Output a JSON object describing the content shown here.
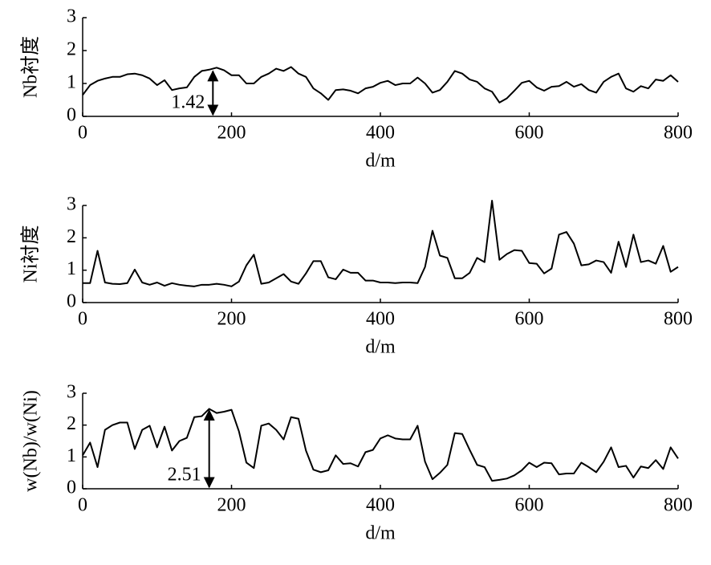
{
  "chart_data": [
    {
      "type": "line",
      "ylabel": "Nb衬度",
      "xlabel": "d/m",
      "color": "#000000",
      "x": [
        0,
        10,
        20,
        30,
        40,
        50,
        60,
        70,
        80,
        90,
        100,
        110,
        120,
        130,
        140,
        150,
        160,
        170,
        180,
        190,
        200,
        210,
        220,
        230,
        240,
        250,
        260,
        270,
        280,
        290,
        300,
        310,
        320,
        330,
        340,
        350,
        360,
        370,
        380,
        390,
        400,
        410,
        420,
        430,
        440,
        450,
        460,
        470,
        480,
        490,
        500,
        510,
        520,
        530,
        540,
        550,
        560,
        570,
        580,
        590,
        600,
        610,
        620,
        630,
        640,
        650,
        660,
        670,
        680,
        690,
        700,
        710,
        720,
        730,
        740,
        750,
        760,
        770,
        780,
        790,
        800
      ],
      "values": [
        0.65,
        0.95,
        1.08,
        1.15,
        1.2,
        1.2,
        1.28,
        1.3,
        1.25,
        1.15,
        0.95,
        1.1,
        0.8,
        0.85,
        0.88,
        1.2,
        1.38,
        1.42,
        1.48,
        1.4,
        1.25,
        1.25,
        1.0,
        1.0,
        1.2,
        1.3,
        1.45,
        1.38,
        1.5,
        1.3,
        1.2,
        0.85,
        0.7,
        0.5,
        0.8,
        0.82,
        0.78,
        0.7,
        0.85,
        0.9,
        1.02,
        1.08,
        0.95,
        1.0,
        1.0,
        1.18,
        1.0,
        0.72,
        0.8,
        1.05,
        1.38,
        1.3,
        1.12,
        1.05,
        0.85,
        0.75,
        0.42,
        0.55,
        0.78,
        1.02,
        1.08,
        0.88,
        0.78,
        0.9,
        0.92,
        1.05,
        0.9,
        0.98,
        0.8,
        0.72,
        1.05,
        1.2,
        1.3,
        0.85,
        0.75,
        0.92,
        0.85,
        1.12,
        1.08,
        1.25,
        1.05
      ],
      "xlim": [
        0,
        800
      ],
      "xticks": [
        0,
        200,
        400,
        600,
        800
      ],
      "ylim": [
        0,
        3
      ],
      "yticks": [
        0,
        1,
        2,
        3
      ],
      "annotation": {
        "label": "1.42",
        "x": 175,
        "y": 1.42
      }
    },
    {
      "type": "line",
      "ylabel": "Ni衬度",
      "xlabel": "d/m",
      "color": "#000000",
      "x": [
        0,
        10,
        20,
        30,
        40,
        50,
        60,
        70,
        80,
        90,
        100,
        110,
        120,
        130,
        140,
        150,
        160,
        170,
        180,
        190,
        200,
        210,
        220,
        230,
        240,
        250,
        260,
        270,
        280,
        290,
        300,
        310,
        320,
        330,
        340,
        350,
        360,
        370,
        380,
        390,
        400,
        410,
        420,
        430,
        440,
        450,
        460,
        470,
        480,
        490,
        500,
        510,
        520,
        530,
        540,
        550,
        560,
        570,
        580,
        590,
        600,
        610,
        620,
        630,
        640,
        650,
        660,
        670,
        680,
        690,
        700,
        710,
        720,
        730,
        740,
        750,
        760,
        770,
        780,
        790,
        800
      ],
      "values": [
        0.6,
        0.6,
        1.6,
        0.62,
        0.58,
        0.57,
        0.6,
        1.02,
        0.62,
        0.55,
        0.62,
        0.52,
        0.6,
        0.55,
        0.52,
        0.5,
        0.55,
        0.55,
        0.58,
        0.55,
        0.5,
        0.65,
        1.15,
        1.48,
        0.58,
        0.62,
        0.75,
        0.88,
        0.65,
        0.58,
        0.9,
        1.28,
        1.28,
        0.78,
        0.72,
        1.02,
        0.92,
        0.92,
        0.68,
        0.68,
        0.62,
        0.62,
        0.6,
        0.62,
        0.62,
        0.6,
        1.1,
        2.22,
        1.45,
        1.38,
        0.75,
        0.75,
        0.92,
        1.38,
        1.25,
        3.15,
        1.32,
        1.5,
        1.62,
        1.6,
        1.22,
        1.2,
        0.9,
        1.05,
        2.1,
        2.18,
        1.82,
        1.15,
        1.18,
        1.3,
        1.25,
        0.92,
        1.88,
        1.1,
        2.1,
        1.25,
        1.3,
        1.2,
        1.75,
        0.95,
        1.1
      ],
      "xlim": [
        0,
        800
      ],
      "xticks": [
        0,
        200,
        400,
        600,
        800
      ],
      "ylim": [
        0,
        3
      ],
      "yticks": [
        0,
        1,
        2,
        3
      ]
    },
    {
      "type": "line",
      "ylabel": "w(Nb)/w(Ni)",
      "xlabel": "d/m",
      "color": "#000000",
      "x": [
        0,
        10,
        20,
        30,
        40,
        50,
        60,
        70,
        80,
        90,
        100,
        110,
        120,
        130,
        140,
        150,
        160,
        170,
        180,
        190,
        200,
        210,
        220,
        230,
        240,
        250,
        260,
        270,
        280,
        290,
        300,
        310,
        320,
        330,
        340,
        350,
        360,
        370,
        380,
        390,
        400,
        410,
        420,
        430,
        440,
        450,
        460,
        470,
        480,
        490,
        500,
        510,
        520,
        530,
        540,
        550,
        560,
        570,
        580,
        590,
        600,
        610,
        620,
        630,
        640,
        650,
        660,
        670,
        680,
        690,
        700,
        710,
        720,
        730,
        740,
        750,
        760,
        770,
        780,
        790,
        800
      ],
      "values": [
        1.05,
        1.45,
        0.68,
        1.85,
        2.0,
        2.08,
        2.08,
        1.25,
        1.85,
        1.98,
        1.3,
        1.95,
        1.2,
        1.5,
        1.6,
        2.25,
        2.28,
        2.51,
        2.38,
        2.42,
        2.48,
        1.8,
        0.82,
        0.65,
        1.98,
        2.05,
        1.85,
        1.55,
        2.25,
        2.2,
        1.2,
        0.6,
        0.52,
        0.58,
        1.05,
        0.78,
        0.8,
        0.7,
        1.15,
        1.22,
        1.58,
        1.68,
        1.58,
        1.55,
        1.55,
        1.98,
        0.85,
        0.3,
        0.5,
        0.75,
        1.75,
        1.72,
        1.22,
        0.75,
        0.68,
        0.25,
        0.28,
        0.32,
        0.42,
        0.58,
        0.82,
        0.68,
        0.82,
        0.8,
        0.45,
        0.48,
        0.48,
        0.82,
        0.68,
        0.52,
        0.85,
        1.3,
        0.68,
        0.72,
        0.35,
        0.7,
        0.65,
        0.9,
        0.62,
        1.3,
        0.95
      ],
      "xlim": [
        0,
        800
      ],
      "xticks": [
        0,
        200,
        400,
        600,
        800
      ],
      "ylim": [
        0,
        3
      ],
      "yticks": [
        0,
        1,
        2,
        3
      ],
      "annotation": {
        "label": "2.51",
        "x": 170,
        "y": 2.51
      }
    }
  ]
}
